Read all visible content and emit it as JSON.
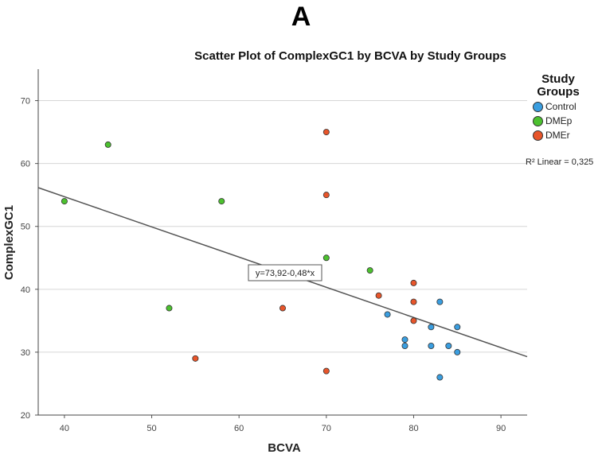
{
  "panel_label": "A",
  "chart_data": {
    "type": "scatter",
    "title": "Scatter Plot of ComplexGC1 by BCVA by Study Groups",
    "xlabel": "BCVA",
    "ylabel": "ComplexGC1",
    "xlim": [
      37,
      93
    ],
    "ylim": [
      20,
      75
    ],
    "x_ticks": [
      40,
      50,
      60,
      70,
      80,
      90
    ],
    "y_ticks": [
      20,
      30,
      40,
      50,
      60,
      70
    ],
    "grid": "horizontal",
    "legend": {
      "title": "Study Groups",
      "position": "right",
      "entries": [
        {
          "name": "Control",
          "color": "#3a9ee0"
        },
        {
          "name": "DMEp",
          "color": "#4cc12f"
        },
        {
          "name": "DMEr",
          "color": "#e8552a"
        }
      ]
    },
    "series": [
      {
        "name": "Control",
        "color": "#3a9ee0",
        "points": [
          [
            77,
            36
          ],
          [
            79,
            32
          ],
          [
            79,
            31
          ],
          [
            82,
            34
          ],
          [
            82,
            31
          ],
          [
            83,
            38
          ],
          [
            83,
            26
          ],
          [
            84,
            31
          ],
          [
            85,
            34
          ],
          [
            85,
            30
          ]
        ]
      },
      {
        "name": "DMEp",
        "color": "#4cc12f",
        "points": [
          [
            40,
            54
          ],
          [
            45,
            63
          ],
          [
            52,
            37
          ],
          [
            58,
            54
          ],
          [
            70,
            45
          ],
          [
            75,
            43
          ]
        ]
      },
      {
        "name": "DMEr",
        "color": "#e8552a",
        "points": [
          [
            55,
            29
          ],
          [
            65,
            37
          ],
          [
            70,
            65
          ],
          [
            70,
            55
          ],
          [
            70,
            27
          ],
          [
            76,
            39
          ],
          [
            80,
            41
          ],
          [
            80,
            38
          ],
          [
            80,
            35
          ]
        ]
      }
    ],
    "fit_line": {
      "intercept": 73.92,
      "slope": -0.48,
      "label": "y=73,92-0,48*x"
    },
    "r2_label": "R² Linear = 0,325"
  }
}
